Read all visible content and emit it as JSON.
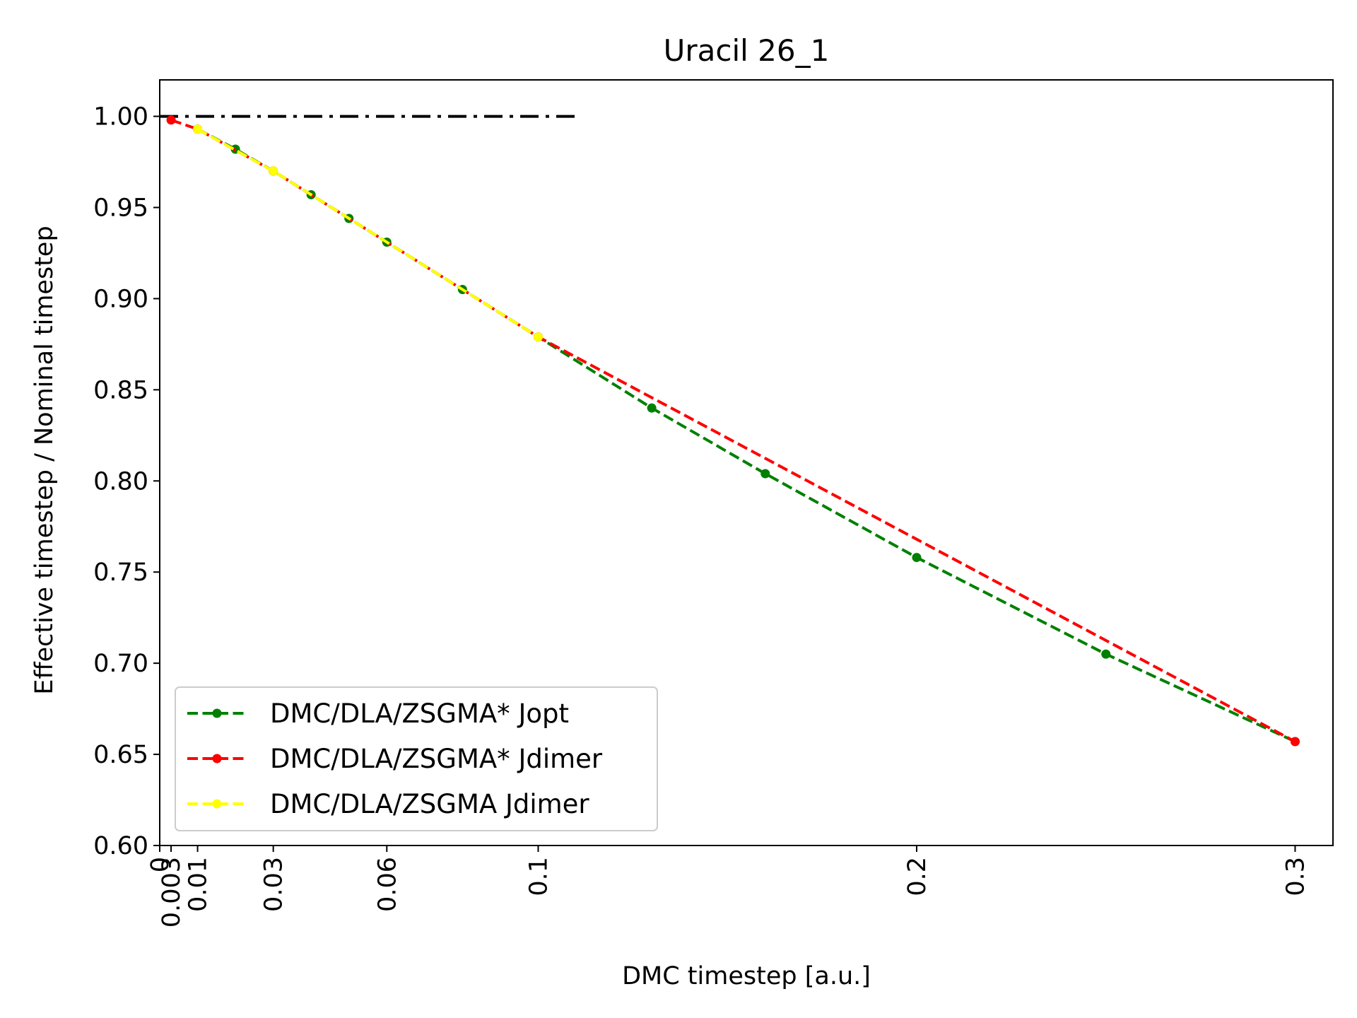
{
  "chart_data": {
    "type": "line",
    "title": "Uracil 26_1",
    "xlabel": "DMC timestep [a.u.]",
    "ylabel": "Effective timestep / Nominal timestep",
    "xlim": [
      0,
      0.31
    ],
    "ylim": [
      0.6,
      1.02
    ],
    "x_ticks": [
      0,
      0.003,
      0.01,
      0.03,
      0.06,
      0.1,
      0.2,
      0.3
    ],
    "x_tick_labels": [
      "0",
      "0.003",
      "0.01",
      "0.03",
      "0.06",
      "0.1",
      "0.2",
      "0.3"
    ],
    "y_ticks": [
      0.6,
      0.65,
      0.7,
      0.75,
      0.8,
      0.85,
      0.9,
      0.95,
      1.0
    ],
    "y_tick_labels": [
      "0.60",
      "0.65",
      "0.70",
      "0.75",
      "0.80",
      "0.85",
      "0.90",
      "0.95",
      "1.00"
    ],
    "reference_line": {
      "y": 1.0,
      "x_range": [
        0,
        0.11
      ],
      "style": "dash-dot",
      "color": "#000000"
    },
    "grid": false,
    "legend_position": "lower-left",
    "series": [
      {
        "name": "DMC/DLA/ZSGMA* Jopt",
        "color": "#008000",
        "x": [
          0.01,
          0.02,
          0.03,
          0.04,
          0.05,
          0.06,
          0.08,
          0.1,
          0.13,
          0.16,
          0.2,
          0.25,
          0.3
        ],
        "y": [
          0.993,
          0.982,
          0.97,
          0.957,
          0.944,
          0.931,
          0.905,
          0.879,
          0.84,
          0.804,
          0.758,
          0.705,
          0.657
        ]
      },
      {
        "name": "DMC/DLA/ZSGMA* Jdimer",
        "color": "#ff0000",
        "x": [
          0.003,
          0.01,
          0.03,
          0.1,
          0.3
        ],
        "y": [
          0.998,
          0.993,
          0.97,
          0.879,
          0.657
        ]
      },
      {
        "name": "DMC/DLA/ZSGMA Jdimer",
        "color": "#ffff00",
        "x": [
          0.01,
          0.03,
          0.1
        ],
        "y": [
          0.993,
          0.97,
          0.879
        ]
      }
    ]
  }
}
